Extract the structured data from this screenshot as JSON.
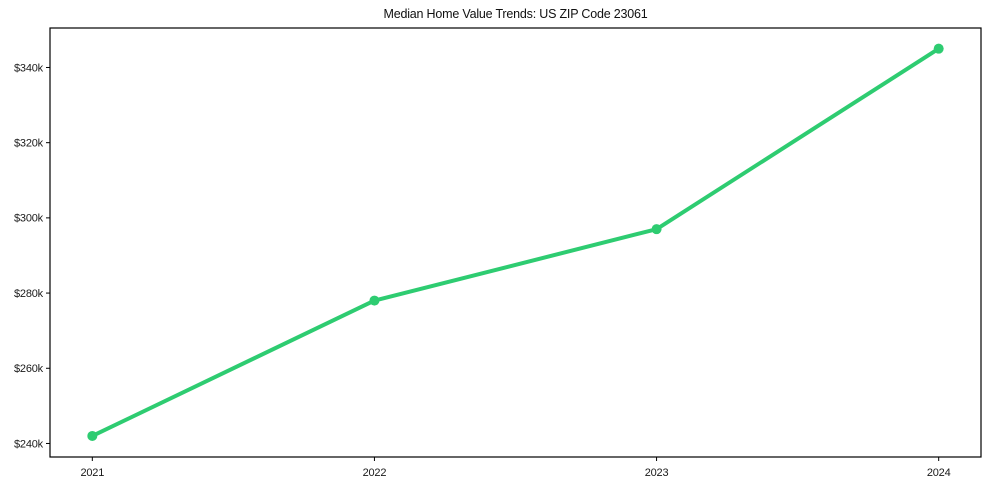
{
  "chart_data": {
    "type": "line",
    "title": "Median Home Value Trends: US ZIP Code 23061",
    "x": [
      2021,
      2022,
      2023,
      2024
    ],
    "x_tick_labels": [
      "2021",
      "2022",
      "2023",
      "2024"
    ],
    "series": [
      {
        "name": "Median Home Value",
        "values": [
          242000,
          278000,
          297000,
          345000
        ]
      }
    ],
    "y_ticks": [
      240000,
      260000,
      280000,
      300000,
      320000,
      340000
    ],
    "y_tick_labels": [
      "$240k",
      "$260k",
      "$280k",
      "$300k",
      "$320k",
      "$340k"
    ],
    "xlim": [
      2020.85,
      2024.15
    ],
    "ylim": [
      236400,
      350500
    ],
    "grid": false,
    "legend": "none",
    "line_color": "#2ecc71",
    "marker": "circle",
    "axis_color": "#000000",
    "tick_label_color": "#1a1a1a"
  }
}
